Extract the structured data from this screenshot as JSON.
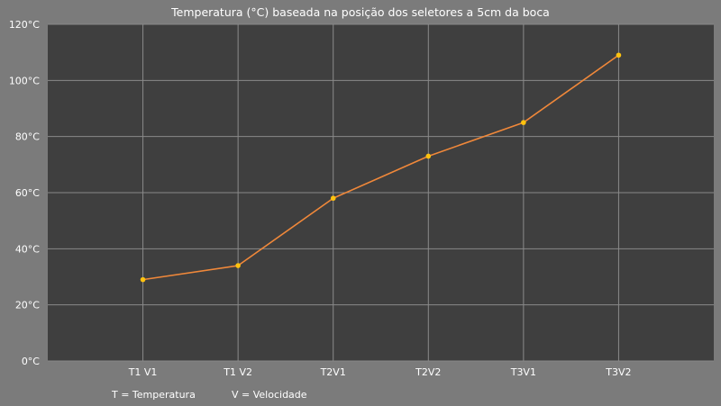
{
  "chart_data": {
    "type": "line",
    "title": "Temperatura (°C) baseada na posição dos seletores a 5cm da boca",
    "xlabel": "",
    "ylabel": "",
    "categories": [
      "T1 V1",
      "T1 V2",
      "T2V1",
      "T2V2",
      "T3V1",
      "T3V2"
    ],
    "series": [
      {
        "name": "",
        "values": [
          29,
          34,
          58,
          73,
          85,
          109
        ]
      }
    ],
    "ylim": [
      0,
      120
    ],
    "yticks": [
      "0°C",
      "20°C",
      "40°C",
      "60°C",
      "80°C",
      "100°C",
      "120°C"
    ],
    "grid": true,
    "legend": "none",
    "footnotes": [
      "T = Temperatura",
      "V = Velocidade"
    ],
    "colors": {
      "background": "#7b7b7b",
      "plot_area": "#3f3f3f",
      "grid": "#8a8a8a",
      "line": "#f0883a",
      "marker": "#ffc20e"
    }
  }
}
